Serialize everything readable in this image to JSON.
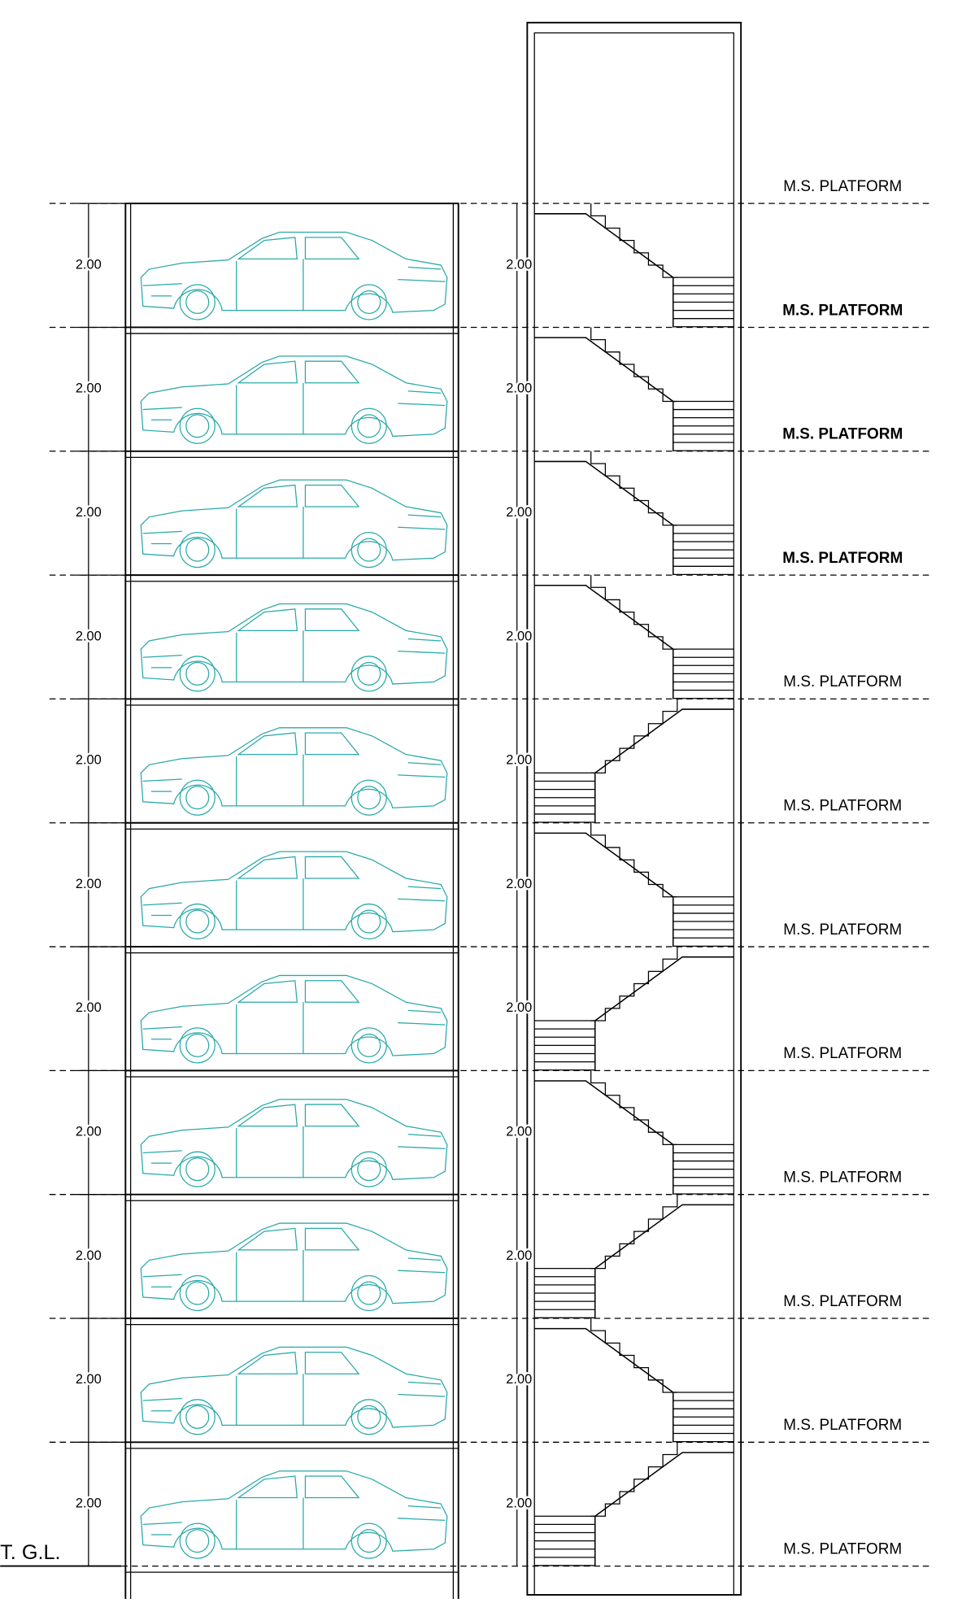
{
  "ground_label": "T. G.L.",
  "platforms": [
    "M.S. PLATFORM",
    "M.S. PLATFORM",
    "M.S. PLATFORM",
    "M.S. PLATFORM",
    "M.S. PLATFORM",
    "M.S. PLATFORM",
    "M.S. PLATFORM",
    "M.S. PLATFORM",
    "M.S. PLATFORM",
    "M.S. PLATFORM",
    "M.S. PLATFORM",
    "M.S. PLATFORM"
  ],
  "left_dimensions": [
    "2.00",
    "2.00",
    "2.00",
    "2.00",
    "2.00",
    "2.00",
    "2.00",
    "2.00",
    "2.00",
    "2.00",
    "2.00"
  ],
  "stair_dimensions": [
    "2.00",
    "2.00",
    "2.00",
    "2.00",
    "2.00",
    "2.00",
    "2.00",
    "2.00",
    "2.00",
    "2.00",
    "2.00"
  ]
}
